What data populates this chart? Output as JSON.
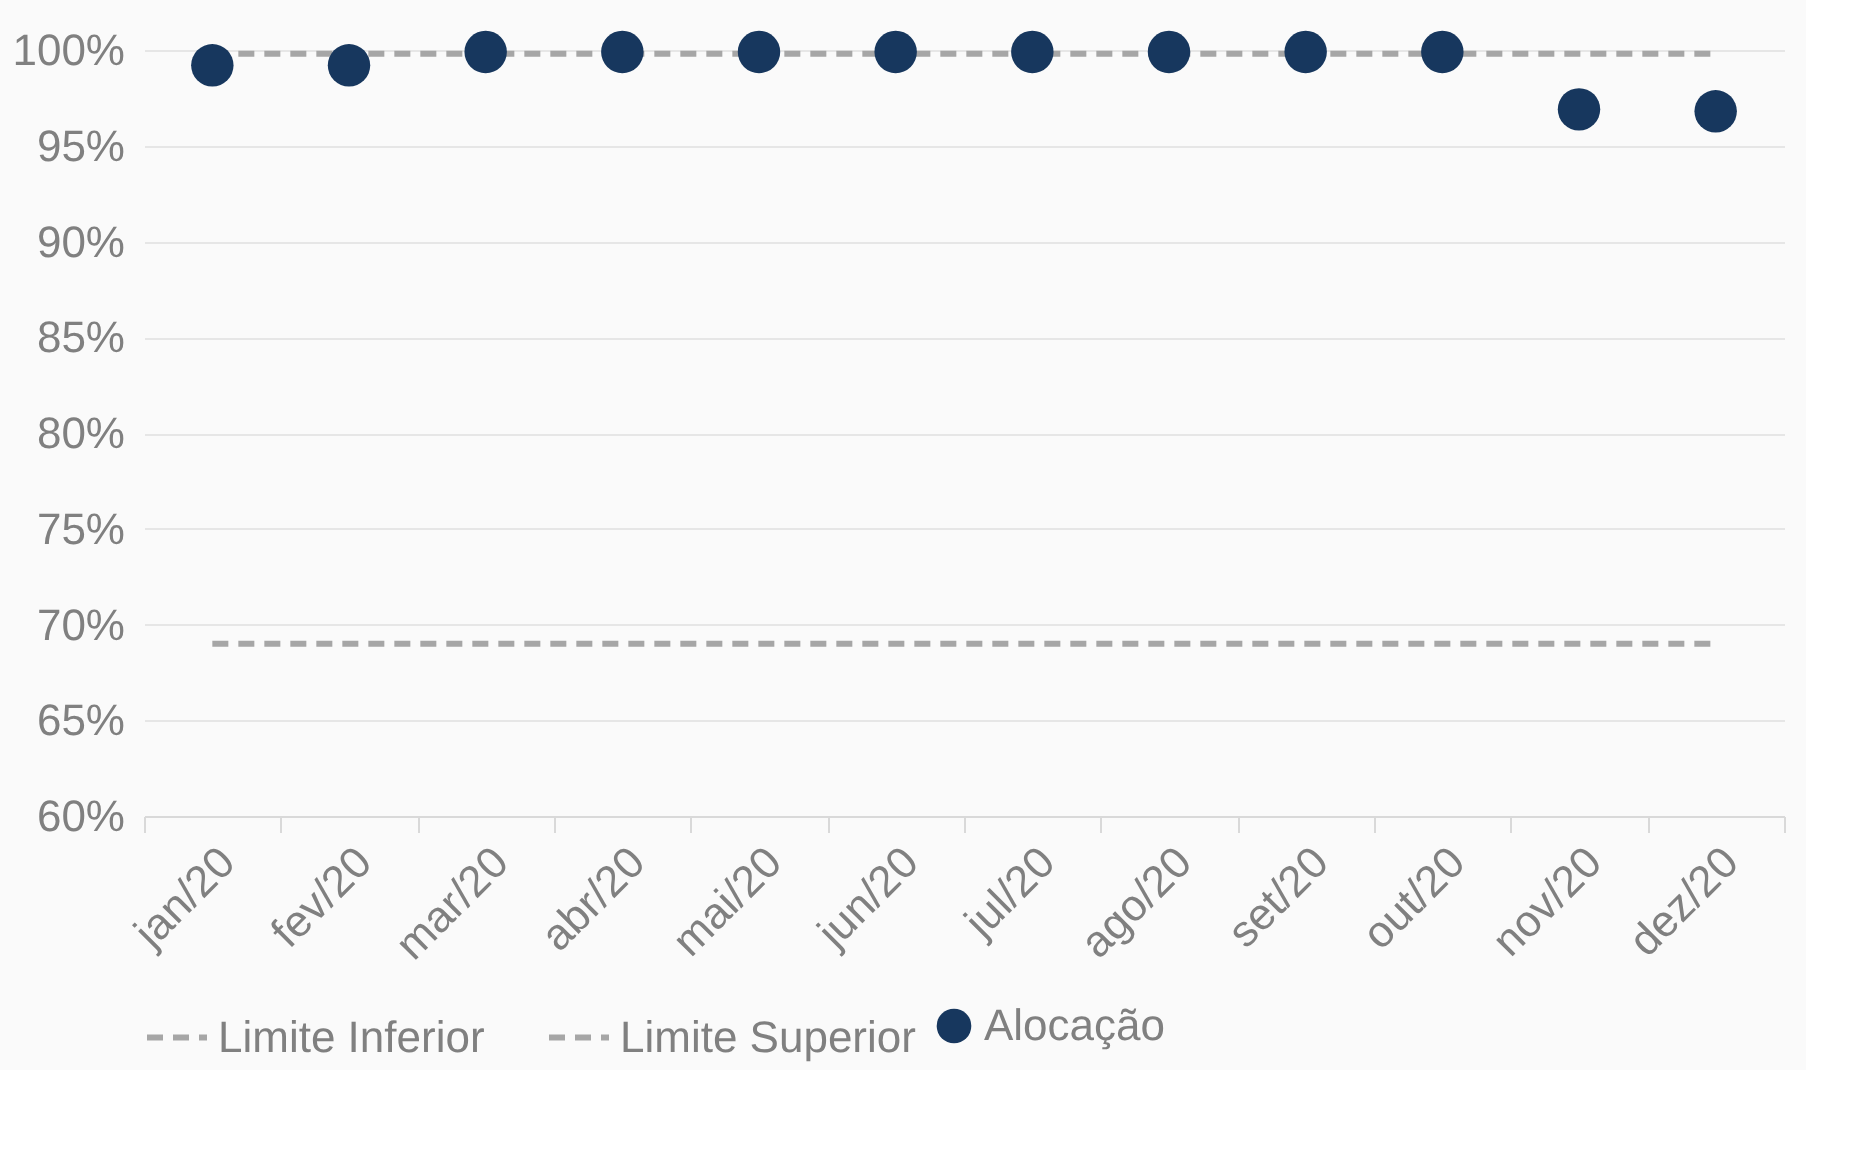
{
  "chart_data": {
    "type": "scatter",
    "categories": [
      "jan/20",
      "fev/20",
      "mar/20",
      "abr/20",
      "mai/20",
      "jun/20",
      "jul/20",
      "ago/20",
      "set/20",
      "out/20",
      "nov/20",
      "dez/20"
    ],
    "series": [
      {
        "name": "Alocação",
        "color": "#17375e",
        "values": [
          99.2,
          99.2,
          99.9,
          99.9,
          99.9,
          99.9,
          99.9,
          99.9,
          99.9,
          99.9,
          96.9,
          96.8
        ]
      }
    ],
    "ylim": [
      60,
      100
    ],
    "yticks": [
      {
        "value": 60,
        "label": "60%"
      },
      {
        "value": 65,
        "label": "65%"
      },
      {
        "value": 70,
        "label": "70%"
      },
      {
        "value": 75,
        "label": "75%"
      },
      {
        "value": 80,
        "label": "80%"
      },
      {
        "value": 85,
        "label": "85%"
      },
      {
        "value": 90,
        "label": "90%"
      },
      {
        "value": 95,
        "label": "95%"
      },
      {
        "value": 100,
        "label": "100%"
      }
    ],
    "ref_lines": [
      {
        "axis": "y",
        "value": 69,
        "label": "Limite Inferior",
        "color": "#a6a6a6",
        "line_style": "dashed"
      },
      {
        "axis": "y",
        "value": 99.8,
        "label": "Limite Superior",
        "color": "#a6a6a6",
        "line_style": "dashed"
      }
    ],
    "grid": "y",
    "legend": "bottom",
    "marker": "circle"
  }
}
